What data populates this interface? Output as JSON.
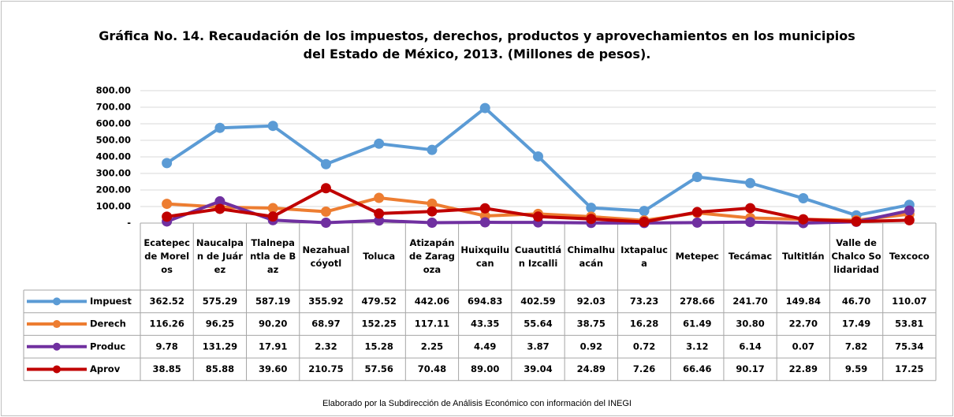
{
  "chart_data": {
    "type": "line",
    "title": "Gráfica No. 14. Recaudación de los impuestos, derechos, productos y aprovechamientos en los municipios del Estado de México, 2013. (Millones de pesos).",
    "categories": [
      "Ecatepec de Morelos",
      "Naucalpan de Juárez",
      "Tlalnepantla de Baz",
      "Nezahualcóyotl",
      "Toluca",
      "Atizapán de Zaragoza",
      "Huixquilucan",
      "Cuautitlán Izcalli",
      "Chimalhuacán",
      "Ixtapaluca",
      "Metepec",
      "Tecámac",
      "Tultitlán",
      "Valle de Chalco Solidaridad",
      "Texcoco"
    ],
    "series": [
      {
        "name": "Impuest",
        "color": "#5b9bd5",
        "values": [
          362.52,
          575.29,
          587.19,
          355.92,
          479.52,
          442.06,
          694.83,
          402.59,
          92.03,
          73.23,
          278.66,
          241.7,
          149.84,
          46.7,
          110.07
        ],
        "value_labels": [
          "362.52",
          "575.29",
          "587.19",
          "355.92",
          "479.52",
          "442.06",
          "694.83",
          "402.59",
          "92.03",
          "73.23",
          "278.66",
          "241.70",
          "149.84",
          "46.70",
          "110.07"
        ]
      },
      {
        "name": "Derech",
        "color": "#ed7d31",
        "values": [
          116.26,
          96.25,
          90.2,
          68.97,
          152.25,
          117.11,
          43.35,
          55.64,
          38.75,
          16.28,
          61.49,
          30.8,
          22.7,
          17.49,
          53.81
        ],
        "value_labels": [
          "116.26",
          "96.25",
          "90.20",
          "68.97",
          "152.25",
          "117.11",
          "43.35",
          "55.64",
          "38.75",
          "16.28",
          "61.49",
          "30.80",
          "22.70",
          "17.49",
          "53.81"
        ]
      },
      {
        "name": "Produc",
        "color": "#7030a0",
        "values": [
          9.78,
          131.29,
          17.91,
          2.32,
          15.28,
          2.25,
          4.49,
          3.87,
          0.92,
          0.72,
          3.12,
          6.14,
          0.07,
          7.82,
          75.34
        ],
        "value_labels": [
          "9.78",
          "131.29",
          "17.91",
          "2.32",
          "15.28",
          "2.25",
          "4.49",
          "3.87",
          "0.92",
          "0.72",
          "3.12",
          "6.14",
          "0.07",
          "7.82",
          "75.34"
        ]
      },
      {
        "name": "Aprov",
        "color": "#c00000",
        "values": [
          38.85,
          85.88,
          39.6,
          210.75,
          57.56,
          70.48,
          89.0,
          39.04,
          24.89,
          7.26,
          66.46,
          90.17,
          22.89,
          9.59,
          17.25
        ],
        "value_labels": [
          "38.85",
          "85.88",
          "39.60",
          "210.75",
          "57.56",
          "70.48",
          "89.00",
          "39.04",
          "24.89",
          "7.26",
          "66.46",
          "90.17",
          "22.89",
          "9.59",
          "17.25"
        ]
      }
    ],
    "ylim": [
      0,
      800
    ],
    "yticks": [
      {
        "value": 0,
        "label": "-"
      },
      {
        "value": 100,
        "label": "100.00"
      },
      {
        "value": 200,
        "label": "200.00"
      },
      {
        "value": 300,
        "label": "300.00"
      },
      {
        "value": 400,
        "label": "400.00"
      },
      {
        "value": 500,
        "label": "500.00"
      },
      {
        "value": 600,
        "label": "600.00"
      },
      {
        "value": 700,
        "label": "700.00"
      },
      {
        "value": 800,
        "label": "800.00"
      }
    ],
    "grid": true,
    "footnote": "Elaborado por la Subdirección de Análisis Económico con información del INEGI"
  }
}
